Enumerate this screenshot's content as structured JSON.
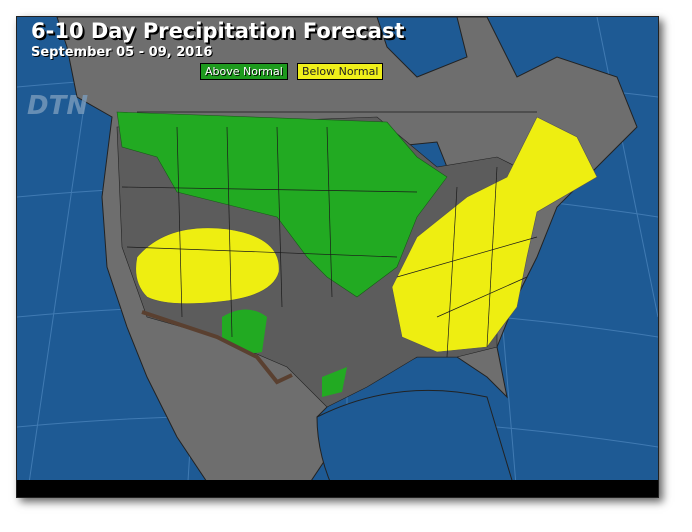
{
  "header": {
    "title": "6-10 Day Precipitation Forecast",
    "subtitle": "September 05 - 09, 2016"
  },
  "legend": [
    {
      "label": "Above Normal",
      "color": "#1e9a1e"
    },
    {
      "label": "Below Normal",
      "color": "#f0f01a"
    }
  ],
  "logo": "DTN",
  "colors": {
    "ocean": "#1e5a94",
    "land": "#6e6e6e",
    "normal_region": "#5c5c5c",
    "above_normal": "#22aa22",
    "below_normal": "#eeee11",
    "coast_shelf": "#5a4030"
  }
}
